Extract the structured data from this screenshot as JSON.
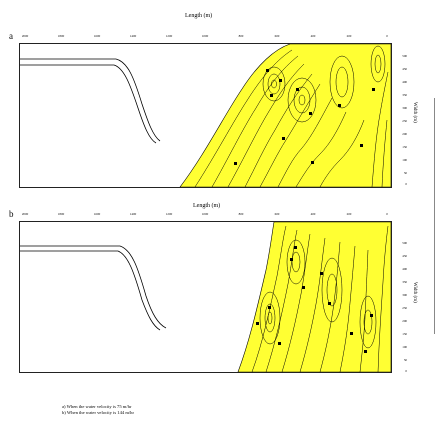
{
  "figure": {
    "panels": [
      {
        "id": "a",
        "letter": "a",
        "title": "Length (m)",
        "top_ticks": [
          "2000",
          "1800",
          "1600",
          "1400",
          "1200",
          "1000",
          "800",
          "600",
          "400",
          "200",
          "0"
        ],
        "right_label": "Width (m)",
        "right_ticks": [
          "500",
          "450",
          "400",
          "350",
          "300",
          "250",
          "200",
          "150",
          "100",
          "50",
          "0"
        ]
      },
      {
        "id": "b",
        "letter": "b",
        "title": "Length (m)",
        "top_ticks": [
          "2000",
          "1800",
          "1600",
          "1400",
          "1200",
          "1000",
          "800",
          "600",
          "400",
          "200",
          "0"
        ],
        "right_label": "Width (m)",
        "right_ticks": [
          "500",
          "450",
          "400",
          "350",
          "300",
          "250",
          "200",
          "150",
          "100",
          "50",
          "0"
        ]
      }
    ],
    "captions": [
      "a) When the water velocity is 75 m/hr",
      "b) When the water velocity is 144 m/hr"
    ],
    "colors": {
      "fill": "#ffff33",
      "line": "#000000",
      "frame": "#222222"
    }
  }
}
